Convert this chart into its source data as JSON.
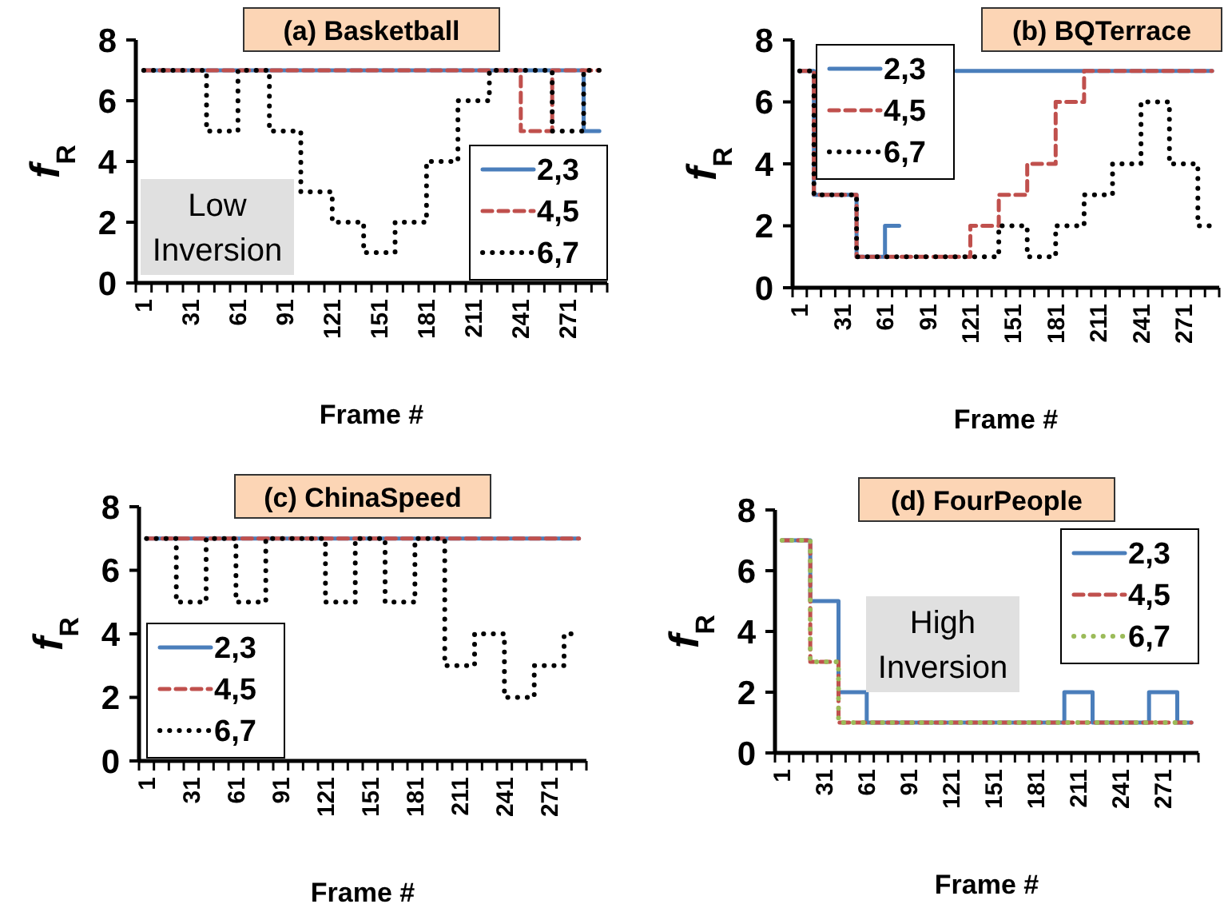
{
  "chart_data": [
    {
      "type": "step",
      "title": "(a) Basketball",
      "xlabel": "Frame #",
      "ylabel": "f$_{R}$",
      "categories": [
        "1",
        null,
        null,
        "31",
        null,
        null,
        "61",
        null,
        null,
        "91",
        null,
        null,
        "121",
        null,
        null,
        "151",
        null,
        null,
        "181",
        null,
        null,
        "211",
        null,
        null,
        "241",
        null,
        null,
        "271",
        null,
        null
      ],
      "ylim": [
        0,
        8
      ],
      "yticks": [
        0,
        2,
        4,
        6,
        8
      ],
      "legend": "bottom right",
      "annotations": [
        "Low Inversion"
      ],
      "series": [
        {
          "name": "2,3",
          "color": "#4a7ebb",
          "line_style": "solid",
          "values": [
            7,
            7,
            7,
            7,
            7,
            7,
            7,
            7,
            7,
            7,
            7,
            7,
            7,
            7,
            7,
            7,
            7,
            7,
            7,
            7,
            7,
            7,
            7,
            7,
            7,
            7,
            7,
            7,
            5,
            5
          ]
        },
        {
          "name": "4,5",
          "color": "#c0504d",
          "line_style": "dashed",
          "values": [
            7,
            7,
            7,
            7,
            7,
            7,
            7,
            7,
            7,
            7,
            7,
            7,
            7,
            7,
            7,
            7,
            7,
            7,
            7,
            7,
            7,
            7,
            7,
            7,
            5,
            5,
            7,
            7,
            7,
            7
          ]
        },
        {
          "name": "6,7",
          "color": "#000000",
          "line_style": "dotted",
          "values": [
            7,
            7,
            7,
            7,
            5,
            5,
            7,
            7,
            5,
            5,
            3,
            3,
            2,
            2,
            1,
            1,
            2,
            2,
            4,
            4,
            6,
            6,
            7,
            7,
            7,
            7,
            5,
            5,
            7,
            7
          ]
        }
      ]
    },
    {
      "type": "step",
      "title": "(b) BQTerrace",
      "xlabel": "Frame #",
      "ylabel": "f$_{R}$",
      "categories": [
        "1",
        null,
        null,
        "31",
        null,
        null,
        "61",
        null,
        null,
        "91",
        null,
        null,
        "121",
        null,
        null,
        "151",
        null,
        null,
        "181",
        null,
        null,
        "211",
        null,
        null,
        "241",
        null,
        null,
        "271",
        null,
        null
      ],
      "ylim": [
        0,
        8
      ],
      "yticks": [
        0,
        2,
        4,
        6,
        8
      ],
      "legend": "top left",
      "series": [
        {
          "name": "2,3",
          "color": "#4a7ebb",
          "line_style": "solid",
          "values": [
            7,
            3,
            3,
            3,
            1,
            1,
            2,
            2,
            null,
            null,
            null,
            7,
            7,
            7,
            7,
            7,
            7,
            7,
            7,
            7,
            7,
            7,
            7,
            7,
            7,
            7,
            7,
            7,
            7,
            7
          ]
        },
        {
          "name": "4,5",
          "color": "#c0504d",
          "line_style": "dashed",
          "values": [
            7,
            3,
            3,
            3,
            1,
            1,
            1,
            1,
            1,
            1,
            1,
            1,
            2,
            2,
            3,
            3,
            4,
            4,
            6,
            6,
            7,
            7,
            7,
            7,
            7,
            7,
            7,
            7,
            7,
            7
          ]
        },
        {
          "name": "6,7",
          "color": "#000000",
          "line_style": "dotted",
          "values": [
            7,
            3,
            3,
            3,
            1,
            1,
            1,
            1,
            1,
            1,
            1,
            1,
            1,
            1,
            2,
            2,
            1,
            1,
            2,
            2,
            3,
            3,
            4,
            4,
            6,
            6,
            4,
            4,
            2,
            2
          ]
        }
      ]
    },
    {
      "type": "step",
      "title": "(c) ChinaSpeed",
      "xlabel": "Frame #",
      "ylabel": "f$_{R}$",
      "categories": [
        "1",
        null,
        null,
        "31",
        null,
        null,
        "61",
        null,
        null,
        "91",
        null,
        null,
        "121",
        null,
        null,
        "151",
        null,
        null,
        "181",
        null,
        null,
        "211",
        null,
        null,
        "241",
        null,
        null,
        "271",
        null,
        null
      ],
      "ylim": [
        0,
        8
      ],
      "yticks": [
        0,
        2,
        4,
        6,
        8
      ],
      "legend": "bottom left",
      "series": [
        {
          "name": "2,3",
          "color": "#4a7ebb",
          "line_style": "solid",
          "values": [
            7,
            7,
            7,
            7,
            7,
            7,
            7,
            7,
            7,
            7,
            7,
            7,
            7,
            7,
            7,
            7,
            7,
            7,
            7,
            7,
            7,
            7,
            7,
            7,
            7,
            7,
            7,
            7,
            7,
            7
          ]
        },
        {
          "name": "4,5",
          "color": "#c0504d",
          "line_style": "dashed",
          "values": [
            7,
            7,
            7,
            7,
            7,
            7,
            7,
            7,
            7,
            7,
            7,
            7,
            7,
            7,
            7,
            7,
            7,
            7,
            7,
            7,
            7,
            7,
            7,
            7,
            7,
            7,
            7,
            7,
            7,
            7
          ]
        },
        {
          "name": "6,7",
          "color": "#000000",
          "line_style": "dotted",
          "values": [
            7,
            7,
            5,
            5,
            7,
            7,
            5,
            5,
            7,
            7,
            7,
            7,
            5,
            5,
            7,
            7,
            5,
            5,
            7,
            7,
            3,
            3,
            4,
            4,
            2,
            2,
            3,
            3,
            4,
            4
          ]
        }
      ]
    },
    {
      "type": "step",
      "title": "(d) FourPeople",
      "xlabel": "Frame #",
      "ylabel": "f$_{R}$",
      "categories": [
        "1",
        null,
        null,
        "31",
        null,
        null,
        "61",
        null,
        null,
        "91",
        null,
        null,
        "121",
        null,
        null,
        "151",
        null,
        null,
        "181",
        null,
        null,
        "211",
        null,
        null,
        "241",
        null,
        null,
        "271",
        null,
        null
      ],
      "ylim": [
        0,
        8
      ],
      "yticks": [
        0,
        2,
        4,
        6,
        8
      ],
      "legend": "top right",
      "annotations": [
        "High Inversion"
      ],
      "series": [
        {
          "name": "2,3",
          "color": "#4a7ebb",
          "line_style": "solid",
          "values": [
            7,
            7,
            5,
            5,
            2,
            2,
            1,
            1,
            1,
            1,
            1,
            1,
            1,
            1,
            1,
            1,
            1,
            1,
            1,
            1,
            2,
            2,
            1,
            1,
            1,
            1,
            2,
            2,
            1,
            1
          ]
        },
        {
          "name": "4,5",
          "color": "#c0504d",
          "line_style": "dashed",
          "values": [
            7,
            7,
            3,
            3,
            1,
            1,
            1,
            1,
            1,
            1,
            1,
            1,
            1,
            1,
            1,
            1,
            1,
            1,
            1,
            1,
            1,
            1,
            1,
            1,
            1,
            1,
            1,
            1,
            1,
            1
          ]
        },
        {
          "name": "6,7",
          "color": "#9bbb59",
          "line_style": "dotted",
          "values": [
            7,
            7,
            3,
            3,
            1,
            1,
            1,
            1,
            1,
            1,
            1,
            1,
            1,
            1,
            1,
            1,
            1,
            1,
            1,
            1,
            1,
            1,
            1,
            1,
            1,
            1,
            1,
            1,
            1,
            1
          ]
        }
      ]
    }
  ]
}
